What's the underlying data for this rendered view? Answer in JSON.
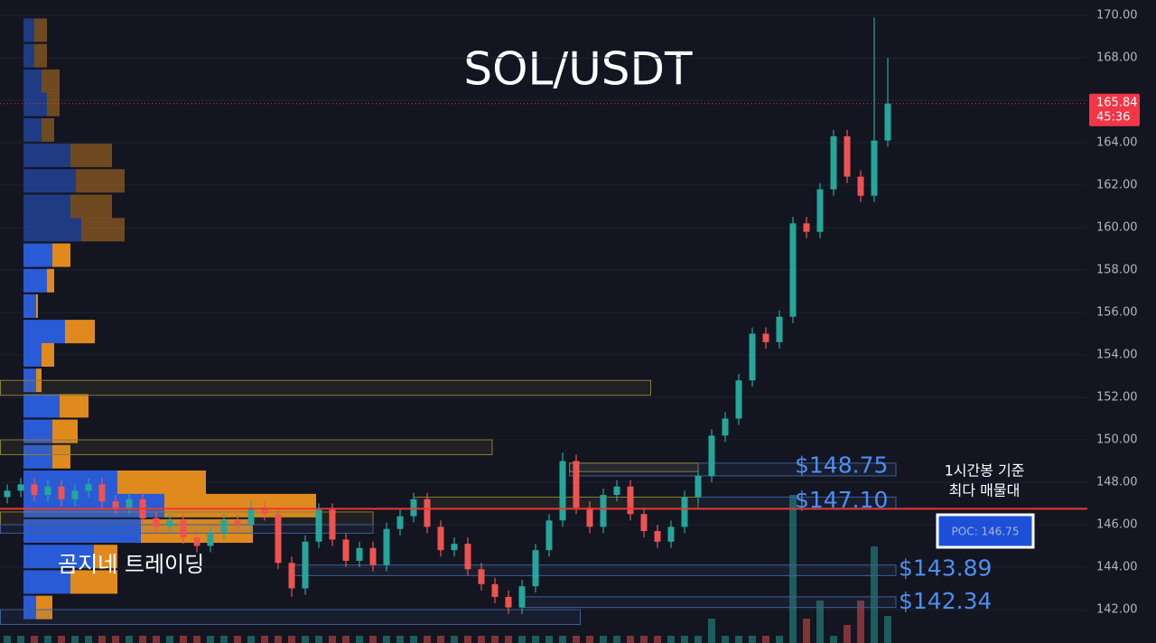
{
  "chart_data": {
    "type": "candlestick",
    "title": "SOL/USDT",
    "watermark": "곰지네 트레이딩",
    "ylim": [
      141,
      171
    ],
    "yticks": [
      {
        "value": 142,
        "label": "142.00"
      },
      {
        "value": 144,
        "label": "144.00"
      },
      {
        "value": 146,
        "label": "146.00"
      },
      {
        "value": 148,
        "label": "148.00"
      },
      {
        "value": 150,
        "label": "150.00"
      },
      {
        "value": 152,
        "label": "152.00"
      },
      {
        "value": 154,
        "label": "154.00"
      },
      {
        "value": 156,
        "label": "156.00"
      },
      {
        "value": 158,
        "label": "158.00"
      },
      {
        "value": 160,
        "label": "160.00"
      },
      {
        "value": 162,
        "label": "162.00"
      },
      {
        "value": 164,
        "label": "164.00"
      },
      {
        "value": 166,
        "label": "166.00"
      },
      {
        "value": 168,
        "label": "168.00"
      },
      {
        "value": 170,
        "label": "170.00"
      }
    ],
    "grid": true,
    "up_color": "#26a69a",
    "down_color": "#ef5350",
    "open": [
      147.3,
      147.6,
      147.9,
      147.4,
      147.8,
      147.2,
      147.6,
      147.9,
      147.1,
      146.8,
      147.2,
      146.3,
      145.9,
      146.2,
      145.4,
      145.0,
      145.6,
      146.2,
      146.0,
      146.8,
      146.5,
      144.2,
      143.0,
      145.2,
      146.7,
      145.3,
      144.3,
      144.9,
      144.1,
      145.8,
      146.4,
      147.2,
      145.9,
      144.8,
      145.1,
      143.9,
      143.2,
      142.6,
      142.1,
      143.1,
      144.8,
      146.2,
      149.0,
      146.8,
      145.9,
      147.4,
      147.8,
      146.5,
      145.7,
      145.2,
      145.9,
      147.3,
      148.3,
      150.2,
      151.0,
      152.8,
      155.0,
      154.6,
      155.8,
      160.2,
      159.8,
      161.8,
      164.3,
      162.4,
      161.5,
      164.1
    ],
    "high": [
      147.9,
      148.2,
      148.2,
      148.1,
      148.1,
      147.9,
      148.2,
      148.2,
      147.4,
      147.5,
      147.5,
      146.6,
      146.5,
      146.5,
      145.7,
      145.9,
      146.5,
      146.5,
      147.1,
      147.1,
      146.8,
      144.5,
      145.5,
      147.0,
      147.0,
      145.6,
      145.2,
      145.2,
      146.1,
      146.7,
      147.5,
      147.5,
      146.2,
      145.4,
      145.4,
      144.2,
      143.5,
      142.9,
      143.4,
      145.1,
      146.5,
      149.4,
      149.3,
      147.1,
      147.7,
      148.1,
      148.1,
      146.8,
      146.0,
      146.2,
      147.6,
      148.6,
      150.5,
      151.3,
      153.1,
      155.3,
      155.3,
      156.1,
      160.5,
      160.5,
      162.1,
      164.6,
      164.6,
      162.7,
      169.9,
      168.0
    ],
    "low": [
      147.0,
      147.3,
      147.1,
      147.1,
      146.9,
      146.9,
      147.3,
      146.8,
      146.5,
      146.5,
      146.0,
      145.6,
      145.6,
      145.1,
      144.7,
      144.7,
      145.3,
      145.7,
      145.7,
      146.2,
      143.9,
      142.6,
      142.7,
      144.9,
      145.0,
      144.0,
      144.0,
      143.8,
      143.8,
      145.5,
      146.1,
      145.6,
      144.5,
      144.5,
      143.6,
      142.9,
      142.3,
      141.8,
      141.8,
      142.8,
      144.5,
      145.9,
      146.5,
      145.6,
      145.6,
      147.1,
      146.2,
      145.4,
      144.9,
      144.9,
      145.6,
      147.0,
      148.0,
      149.9,
      150.7,
      152.5,
      154.3,
      154.3,
      155.5,
      159.5,
      159.5,
      161.5,
      162.1,
      161.2,
      161.2,
      163.8
    ],
    "close": [
      147.6,
      147.9,
      147.4,
      147.8,
      147.2,
      147.6,
      147.9,
      147.1,
      146.8,
      147.2,
      146.3,
      145.9,
      146.2,
      145.4,
      145.0,
      145.6,
      146.2,
      146.0,
      146.8,
      146.5,
      144.2,
      143.0,
      145.2,
      146.7,
      145.3,
      144.3,
      144.9,
      144.1,
      145.8,
      146.4,
      147.2,
      145.9,
      144.8,
      145.1,
      143.9,
      143.2,
      142.6,
      142.1,
      143.1,
      144.8,
      146.2,
      149.0,
      146.8,
      145.9,
      147.4,
      147.8,
      146.5,
      145.7,
      145.2,
      145.9,
      147.3,
      148.3,
      150.2,
      151.0,
      152.8,
      155.0,
      154.6,
      155.8,
      160.2,
      159.8,
      161.8,
      164.3,
      162.4,
      161.5,
      164.1,
      165.84
    ],
    "volume": [
      8,
      8,
      8,
      8,
      8,
      8,
      8,
      8,
      8,
      8,
      8,
      8,
      8,
      8,
      8,
      8,
      8,
      8,
      8,
      8,
      8,
      8,
      8,
      8,
      8,
      8,
      8,
      8,
      8,
      8,
      8,
      8,
      8,
      8,
      8,
      8,
      8,
      8,
      8,
      8,
      8,
      8,
      8,
      8,
      8,
      8,
      8,
      8,
      8,
      8,
      8,
      8,
      27,
      8,
      8,
      8,
      8,
      8,
      164,
      27,
      47,
      8,
      20,
      47,
      107,
      30
    ],
    "vlim": [
      0,
      200
    ],
    "volume_profile": {
      "buy_color": "#2a5bd7",
      "sell_color": "#e08a1e",
      "prices": [
        169.3,
        168.1,
        166.9,
        165.8,
        164.6,
        163.4,
        162.2,
        161.0,
        159.9,
        158.7,
        157.5,
        156.3,
        155.1,
        154.0,
        152.8,
        151.6,
        150.4,
        149.2,
        148.0,
        146.9,
        145.7,
        144.5,
        143.3,
        142.1
      ],
      "buy": [
        12,
        12,
        20,
        26,
        20,
        52,
        58,
        52,
        64,
        32,
        26,
        14,
        46,
        20,
        14,
        40,
        32,
        32,
        104,
        156,
        130,
        78,
        52,
        14
      ],
      "sell": [
        14,
        14,
        20,
        14,
        14,
        46,
        54,
        46,
        48,
        20,
        8,
        2,
        33,
        14,
        6,
        32,
        28,
        20,
        98,
        168,
        124,
        26,
        52,
        18
      ]
    },
    "zones": [
      {
        "low": 152.1,
        "high": 152.8,
        "start": -0.5,
        "end": 47.5,
        "color": "#8a7d2e"
      },
      {
        "low": 149.3,
        "high": 150.0,
        "start": -0.5,
        "end": 35.8,
        "color": "#8a7d2e"
      },
      {
        "low": 148.3,
        "high": 148.9,
        "start": 41.5,
        "end": 65.6,
        "color": "#3f5f95",
        "level": 148.75,
        "label": "$148.75"
      },
      {
        "low": 148.5,
        "high": 148.9,
        "start": 41.5,
        "end": 51,
        "color": "#8a7d2e"
      },
      {
        "low": 146.75,
        "high": 147.3,
        "start": 51,
        "end": 65.6,
        "color": "#3f5f95",
        "level": 147.1,
        "label": "$147.10"
      },
      {
        "low": 146.75,
        "high": 147.3,
        "start": 30,
        "end": 51,
        "color": "#8a7d2e"
      },
      {
        "low": 146.0,
        "high": 146.6,
        "start": -0.5,
        "end": 27,
        "color": "#8a7d2e"
      },
      {
        "low": 145.6,
        "high": 146.0,
        "start": -0.5,
        "end": 27,
        "color": "#3f5f95"
      },
      {
        "low": 143.6,
        "high": 144.1,
        "start": 21,
        "end": 65.6,
        "color": "#3f5f95",
        "level": 143.89,
        "label": "$143.89"
      },
      {
        "low": 142.1,
        "high": 142.6,
        "start": 38,
        "end": 65.6,
        "color": "#3f5f95",
        "level": 142.34,
        "label": "$142.34"
      },
      {
        "low": 141.3,
        "high": 142.0,
        "start": -0.5,
        "end": 42.3,
        "color": "#3f5f95"
      }
    ],
    "poc": {
      "value": 146.75,
      "label": "POC: 146.75",
      "note": [
        "1시간봉 기준",
        "최다 매물대"
      ],
      "color": "#e53935"
    },
    "last": {
      "value": 165.84,
      "label": "165.84",
      "countdown": "45:36",
      "color": "#f23645"
    }
  }
}
